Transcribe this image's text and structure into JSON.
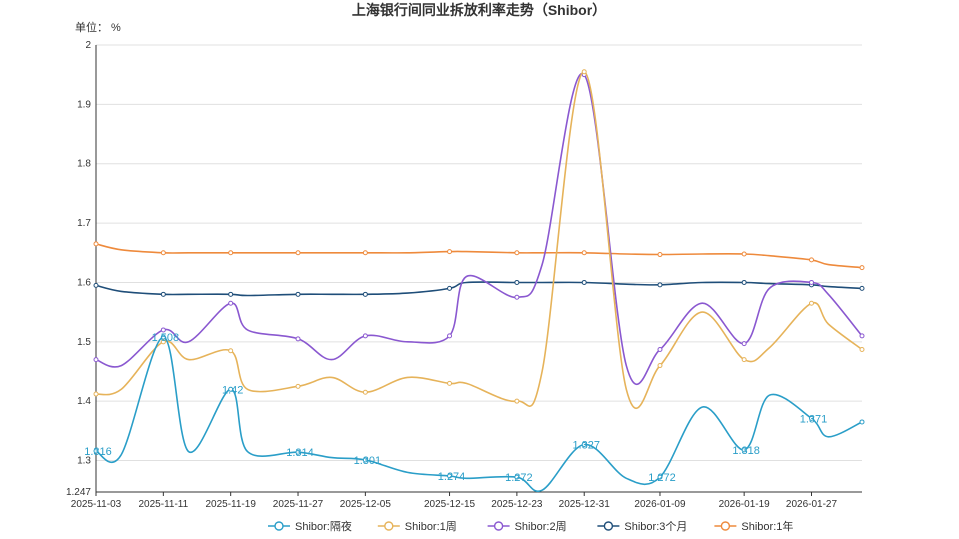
{
  "chart_data": {
    "type": "line",
    "title": "上海银行间同业拆放利率走势（Shibor）",
    "unit_label": "单位： %",
    "ylim": [
      1.247,
      2
    ],
    "y_ticks": [
      1.3,
      1.4,
      1.5,
      1.6,
      1.7,
      1.8,
      1.9,
      2
    ],
    "y_min_label": "1.247",
    "x_dates": [
      "2025-11-03",
      "2025-11-06",
      "2025-11-11",
      "2025-11-14",
      "2025-11-19",
      "2025-11-21",
      "2025-11-27",
      "2025-12-01",
      "2025-12-05",
      "2025-12-10",
      "2025-12-15",
      "2025-12-17",
      "2025-12-23",
      "2025-12-26",
      "2025-12-31",
      "2026-01-05",
      "2026-01-09",
      "2026-01-14",
      "2026-01-19",
      "2026-01-22",
      "2026-01-27",
      "2026-01-29",
      "2026-02-02"
    ],
    "x_ticks": [
      "2025-11-03",
      "2025-11-11",
      "2025-11-19",
      "2025-11-27",
      "2025-12-05",
      "2025-12-15",
      "2025-12-23",
      "2025-12-31",
      "2026-01-09",
      "2026-01-19",
      "2026-01-27"
    ],
    "grid": true,
    "legend_position": "bottom",
    "series": [
      {
        "name": "Shibor:隔夜",
        "color": "#2a9ec8",
        "values": [
          1.316,
          1.31,
          1.508,
          1.315,
          1.42,
          1.315,
          1.314,
          1.305,
          1.301,
          1.28,
          1.274,
          1.27,
          1.272,
          1.25,
          1.327,
          1.27,
          1.272,
          1.39,
          1.318,
          1.41,
          1.371,
          1.34,
          1.365
        ]
      },
      {
        "name": "Shibor:1周",
        "color": "#e6b35a",
        "values": [
          1.412,
          1.42,
          1.5,
          1.47,
          1.485,
          1.42,
          1.425,
          1.44,
          1.415,
          1.44,
          1.43,
          1.43,
          1.4,
          1.45,
          1.955,
          1.42,
          1.46,
          1.55,
          1.47,
          1.49,
          1.565,
          1.53,
          1.487
        ]
      },
      {
        "name": "Shibor:2周",
        "color": "#8a58d0",
        "values": [
          1.47,
          1.46,
          1.52,
          1.5,
          1.565,
          1.52,
          1.505,
          1.47,
          1.51,
          1.5,
          1.51,
          1.61,
          1.575,
          1.63,
          1.95,
          1.46,
          1.487,
          1.565,
          1.497,
          1.59,
          1.6,
          1.58,
          1.51
        ]
      },
      {
        "name": "Shibor:3个月",
        "color": "#1f4e79",
        "values": [
          1.595,
          1.585,
          1.58,
          1.58,
          1.58,
          1.578,
          1.58,
          1.58,
          1.58,
          1.582,
          1.59,
          1.6,
          1.6,
          1.6,
          1.6,
          1.597,
          1.596,
          1.6,
          1.6,
          1.598,
          1.596,
          1.593,
          1.59
        ]
      },
      {
        "name": "Shibor:1年",
        "color": "#ee8a3c",
        "values": [
          1.665,
          1.655,
          1.65,
          1.65,
          1.65,
          1.65,
          1.65,
          1.65,
          1.65,
          1.65,
          1.652,
          1.652,
          1.65,
          1.65,
          1.65,
          1.648,
          1.647,
          1.648,
          1.648,
          1.645,
          1.638,
          1.63,
          1.625
        ]
      }
    ],
    "annotations": [
      {
        "series": 0,
        "index": 0,
        "text": "1.316"
      },
      {
        "series": 0,
        "index": 2,
        "text": "1.508"
      },
      {
        "series": 0,
        "index": 4,
        "text": "1.42"
      },
      {
        "series": 0,
        "index": 6,
        "text": "1.314"
      },
      {
        "series": 0,
        "index": 8,
        "text": "1.301"
      },
      {
        "series": 0,
        "index": 10,
        "text": "1.274"
      },
      {
        "series": 0,
        "index": 12,
        "text": "1.272"
      },
      {
        "series": 0,
        "index": 14,
        "text": "1.327"
      },
      {
        "series": 0,
        "index": 16,
        "text": "1.272"
      },
      {
        "series": 0,
        "index": 18,
        "text": "1.318"
      },
      {
        "series": 0,
        "index": 20,
        "text": "1.371"
      }
    ]
  }
}
